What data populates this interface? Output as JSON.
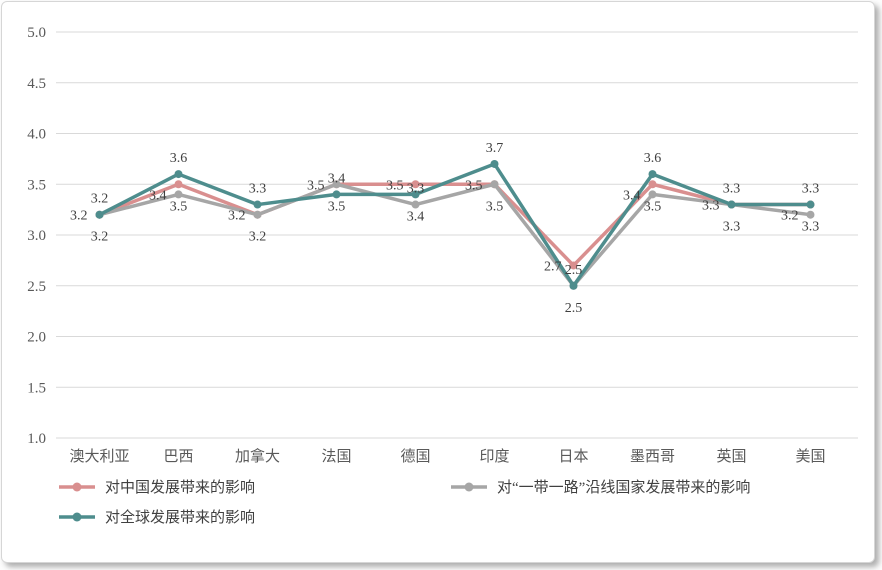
{
  "chart_data": {
    "type": "line",
    "title": "",
    "xlabel": "",
    "ylabel": "",
    "grid": "horizontal",
    "legend_position": "bottom",
    "data_labels": true,
    "ylim": [
      1.0,
      5.0
    ],
    "yticks": [
      5.0,
      4.5,
      4.0,
      3.5,
      3.0,
      2.5,
      2.0,
      1.5,
      1.0
    ],
    "categories": [
      "澳大利亚",
      "巴西",
      "加拿大",
      "法国",
      "德国",
      "印度",
      "日本",
      "墨西哥",
      "英国",
      "美国"
    ],
    "series": [
      {
        "name": "对中国发展带来的影响",
        "color": "#d98f8f",
        "values": [
          3.2,
          3.5,
          3.2,
          3.5,
          3.5,
          3.5,
          2.7,
          3.5,
          3.3,
          3.3
        ],
        "label_positions": [
          "above",
          "below",
          "below",
          "below",
          "left",
          "left",
          "left",
          "below",
          "below",
          "below"
        ]
      },
      {
        "name": "对“一带一路”沿线国家发展带来的影响",
        "color": "#a6a6a6",
        "values": [
          3.2,
          3.4,
          3.2,
          3.5,
          3.3,
          3.5,
          2.5,
          3.4,
          3.3,
          3.2
        ],
        "label_positions": [
          "left",
          "left",
          "left",
          "left",
          "above",
          "below",
          "above",
          "left",
          "left",
          "left"
        ]
      },
      {
        "name": "对全球发展带来的影响",
        "color": "#4e8d8d",
        "values": [
          3.2,
          3.6,
          3.3,
          3.4,
          3.4,
          3.7,
          2.5,
          3.6,
          3.3,
          3.3
        ],
        "label_positions": [
          "below",
          "above",
          "above",
          "above",
          "below",
          "above",
          "below",
          "above",
          "above",
          "above"
        ]
      }
    ]
  },
  "colors": {
    "grid": "#d9d9d9",
    "tick_text": "#595959",
    "label_text": "#3f3f3f",
    "card_border": "#d6d6d6"
  }
}
